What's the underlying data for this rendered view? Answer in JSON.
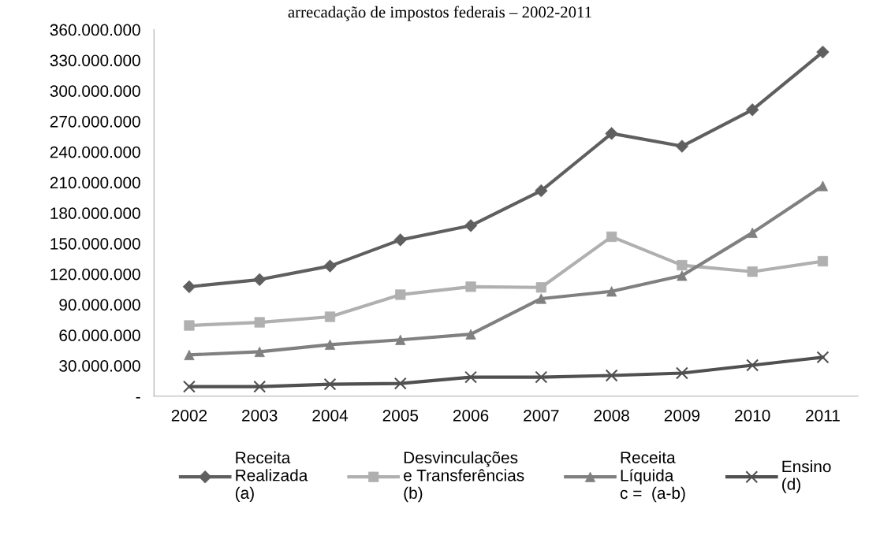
{
  "chart_data": {
    "type": "line",
    "title": "arrecadação de impostos federais – 2002-2011",
    "categories": [
      "2002",
      "2003",
      "2004",
      "2005",
      "2006",
      "2007",
      "2008",
      "2009",
      "2010",
      "2011"
    ],
    "series": [
      {
        "name": "Receita\nRealizada\n(a)",
        "color": "#5f5f5f",
        "marker": "diamond",
        "values": [
          107500000,
          114500000,
          127800000,
          153500000,
          167500000,
          201800000,
          258000000,
          245500000,
          281300000,
          338000000
        ]
      },
      {
        "name": "Desvinculações\ne Transferências\n(b)",
        "color": "#b0b0b0",
        "marker": "square",
        "values": [
          69400000,
          72500000,
          78000000,
          99700000,
          107500000,
          106800000,
          156600000,
          128600000,
          122300000,
          132500000
        ]
      },
      {
        "name": "Receita\nLíquida\nc =  (a-b)",
        "color": "#808080",
        "marker": "triangle",
        "values": [
          40500000,
          43600000,
          50600000,
          55300000,
          60800000,
          95800000,
          102900000,
          118400000,
          160500000,
          206500000
        ]
      },
      {
        "name": "Ensino\n(d)",
        "color": "#505050",
        "marker": "cross",
        "values": [
          9400000,
          9400000,
          11700000,
          12500000,
          18700000,
          18700000,
          20300000,
          22600000,
          30400000,
          38200000
        ]
      }
    ],
    "ylim": [
      0,
      360000000
    ],
    "yticks": [
      {
        "value": 0,
        "label": "-"
      },
      {
        "value": 30000000,
        "label": "30.000.000"
      },
      {
        "value": 60000000,
        "label": "60.000.000"
      },
      {
        "value": 90000000,
        "label": "90.000.000"
      },
      {
        "value": 120000000,
        "label": "120.000.000"
      },
      {
        "value": 150000000,
        "label": "150.000.000"
      },
      {
        "value": 180000000,
        "label": "180.000.000"
      },
      {
        "value": 210000000,
        "label": "210.000.000"
      },
      {
        "value": 240000000,
        "label": "240.000.000"
      },
      {
        "value": 270000000,
        "label": "270.000.000"
      },
      {
        "value": 300000000,
        "label": "300.000.000"
      },
      {
        "value": 330000000,
        "label": "330.000.000"
      },
      {
        "value": 360000000,
        "label": "360.000.000"
      }
    ],
    "grid": false,
    "legend": "bottom",
    "line_style": "solid"
  }
}
